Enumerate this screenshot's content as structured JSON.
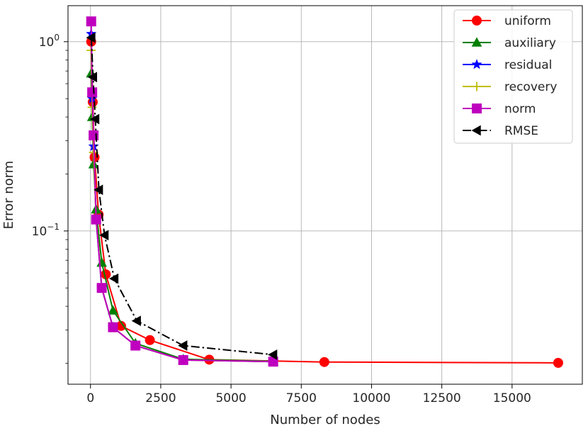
{
  "chart_data": {
    "type": "line",
    "xlabel": "Number of nodes",
    "ylabel": "Error norm",
    "title": "",
    "xlim": [
      -800,
      17500
    ],
    "ylim": [
      0.0155,
      1.55
    ],
    "yscale": "log",
    "grid": true,
    "legend_position": "top-right",
    "x_ticks": [
      {
        "value": 0,
        "label": "0"
      },
      {
        "value": 2500,
        "label": "2500"
      },
      {
        "value": 5000,
        "label": "5000"
      },
      {
        "value": 7500,
        "label": "7500"
      },
      {
        "value": 10000,
        "label": "10000"
      },
      {
        "value": 12500,
        "label": "12500"
      },
      {
        "value": 15000,
        "label": "15000"
      }
    ],
    "y_ticks": [
      {
        "value": 0.1,
        "base": "10",
        "exp": "−1"
      },
      {
        "value": 1,
        "base": "10",
        "exp": "0"
      }
    ],
    "series": [
      {
        "name": "uniform",
        "color": "#ff0000",
        "marker": "circle",
        "line_style": "solid",
        "x": [
          25,
          81,
          145,
          289,
          545,
          1089,
          2113,
          4225,
          8321,
          16641
        ],
        "y": [
          1.0,
          0.48,
          0.245,
          0.122,
          0.059,
          0.0315,
          0.0265,
          0.0209,
          0.0203,
          0.0201
        ]
      },
      {
        "name": "auxiliary",
        "color": "#008000",
        "marker": "triangle-up",
        "line_style": "solid",
        "x": [
          25,
          60,
          110,
          200,
          400,
          800,
          1600,
          3300,
          6500
        ],
        "y": [
          0.68,
          0.4,
          0.225,
          0.13,
          0.068,
          0.038,
          0.0255,
          0.021,
          0.0205
        ]
      },
      {
        "name": "residual",
        "color": "#0000ff",
        "marker": "star",
        "line_style": "solid",
        "x": [
          25,
          60,
          110,
          200,
          400,
          800,
          1600,
          3300,
          6500
        ],
        "y": [
          1.1,
          0.5,
          0.28,
          0.115,
          0.05,
          0.031,
          0.0248,
          0.0208,
          0.0204
        ]
      },
      {
        "name": "recovery",
        "color": "#bfbf00",
        "marker": "plus",
        "line_style": "solid",
        "x": [
          25,
          60,
          110,
          200,
          400,
          800,
          1600,
          3300,
          6500
        ],
        "y": [
          0.9,
          0.45,
          0.26,
          0.118,
          0.05,
          0.031,
          0.0248,
          0.0208,
          0.0204
        ]
      },
      {
        "name": "norm",
        "color": "#bf00bf",
        "marker": "square",
        "line_style": "solid",
        "x": [
          25,
          60,
          110,
          200,
          400,
          800,
          1600,
          3300,
          6500
        ],
        "y": [
          1.28,
          0.54,
          0.32,
          0.115,
          0.05,
          0.031,
          0.0248,
          0.0208,
          0.0204
        ]
      },
      {
        "name": "RMSE",
        "color": "#000000",
        "marker": "triangle-left",
        "line_style": "dashdot",
        "x": [
          30,
          90,
          170,
          300,
          500,
          850,
          1650,
          3300,
          6500
        ],
        "y": [
          1.05,
          0.65,
          0.39,
          0.165,
          0.095,
          0.056,
          0.0335,
          0.0248,
          0.0222
        ]
      }
    ]
  }
}
